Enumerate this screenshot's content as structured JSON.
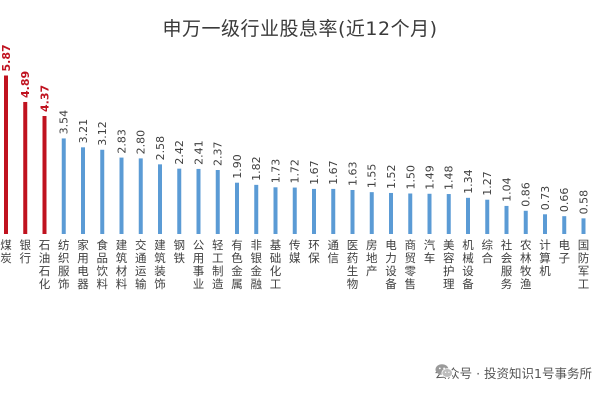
{
  "title": "申万一级行业股息率(近12个月)",
  "watermark": {
    "text": "公众号 · 投资知识1号事务所",
    "icon": "wechat-icon"
  },
  "colors": {
    "highlight": "#c0121f",
    "normal": "#5b9bd5",
    "highlight_label": "#c0121f",
    "normal_label": "#404040"
  },
  "chart_data": {
    "type": "bar",
    "title": "申万一级行业股息率(近12个月)",
    "xlabel": "",
    "ylabel": "",
    "ylim": [
      0,
      6
    ],
    "categories": [
      "煤炭",
      "银行",
      "石油石化",
      "纺织服饰",
      "家用电器",
      "食品饮料",
      "建筑材料",
      "交通运输",
      "建筑装饰",
      "钢铁",
      "公用事业",
      "轻工制造",
      "有色金属",
      "非银金融",
      "基础化工",
      "传媒",
      "环保",
      "通信",
      "医药生物",
      "房地产",
      "电力设备",
      "商贸零售",
      "汽车",
      "美容护理",
      "机械设备",
      "综合",
      "社会服务",
      "农林牧渔",
      "计算机",
      "电子",
      "国防军工"
    ],
    "values": [
      5.87,
      4.89,
      4.37,
      3.54,
      3.21,
      3.12,
      2.83,
      2.8,
      2.58,
      2.42,
      2.41,
      2.37,
      1.9,
      1.82,
      1.73,
      1.72,
      1.67,
      1.67,
      1.63,
      1.55,
      1.52,
      1.5,
      1.49,
      1.48,
      1.34,
      1.27,
      1.04,
      0.86,
      0.73,
      0.66,
      0.58
    ],
    "value_labels": [
      "5.87",
      "4.89",
      "4.37",
      "3.54",
      "3.21",
      "3.12",
      "2.83",
      "2.80",
      "2.58",
      "2.42",
      "2.41",
      "2.37",
      "1.90",
      "1.82",
      "1.73",
      "1.72",
      "1.67",
      "1.67",
      "1.63",
      "1.55",
      "1.52",
      "1.50",
      "1.49",
      "1.48",
      "1.34",
      "1.27",
      "1.04",
      "0.86",
      "0.73",
      "0.66",
      "0.58"
    ],
    "highlighted": [
      0,
      1,
      2
    ],
    "grid": false,
    "legend": "none"
  }
}
